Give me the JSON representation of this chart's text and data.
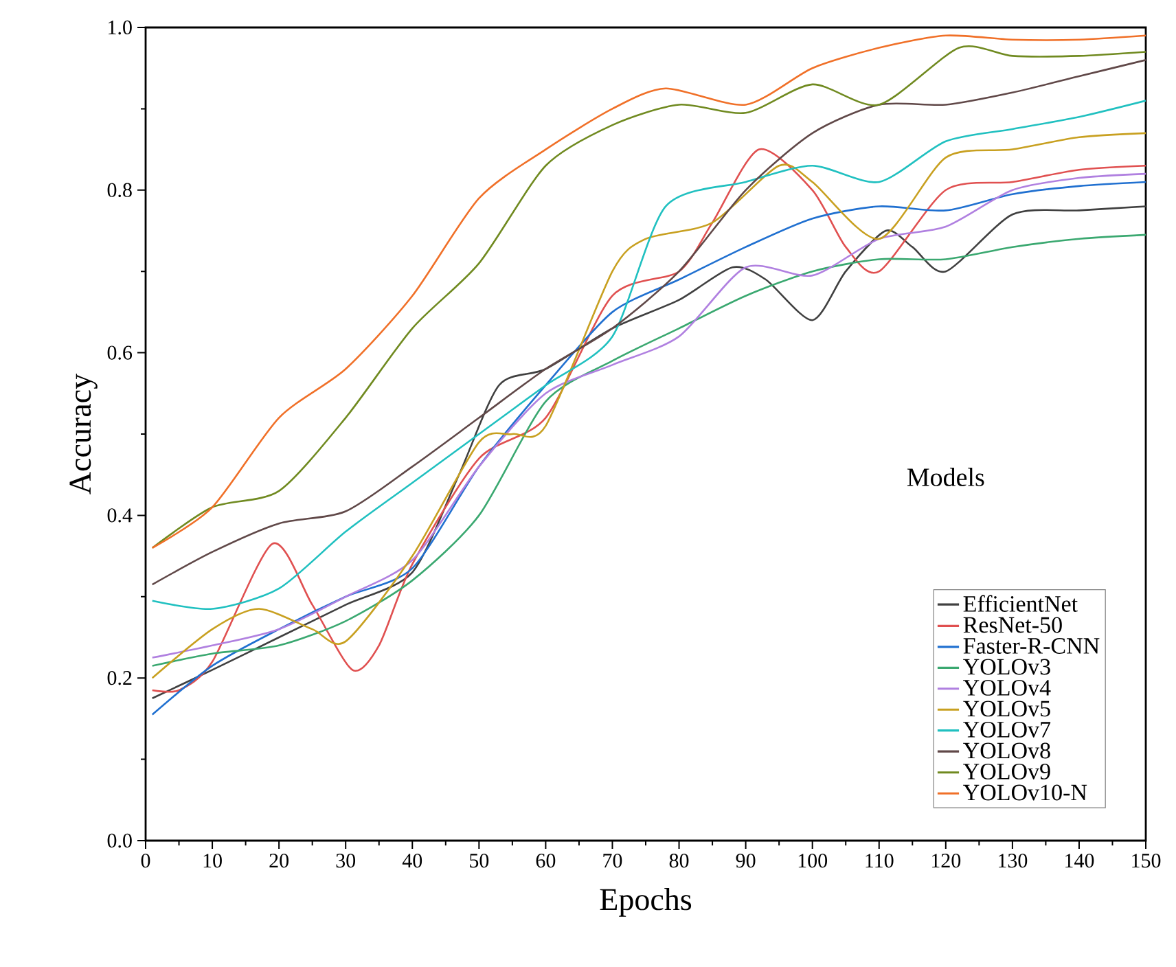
{
  "chart_data": {
    "type": "line",
    "xlabel": "Epochs",
    "ylabel": "Accuracy",
    "legend_title": "Models",
    "legend": "bottom right",
    "grid": false,
    "line_style": "solid",
    "marker": "none",
    "xlim": [
      0,
      150
    ],
    "ylim": [
      0,
      1.0
    ],
    "xticks": [
      0,
      10,
      20,
      30,
      40,
      50,
      60,
      70,
      80,
      90,
      100,
      110,
      120,
      130,
      140,
      150
    ],
    "yticks": [
      {
        "value": 0,
        "label": "0.0"
      },
      {
        "value": 0.2,
        "label": "0.2"
      },
      {
        "value": 0.4,
        "label": "0.4"
      },
      {
        "value": 0.6,
        "label": "0.6"
      },
      {
        "value": 0.8,
        "label": "0.8"
      },
      {
        "value": 1.0,
        "label": "1.0"
      }
    ],
    "series": [
      {
        "name": "EfficientNet",
        "color": "#404040",
        "x": [
          1,
          10,
          20,
          30,
          40,
          47,
          53,
          60,
          70,
          80,
          88,
          93,
          100,
          105,
          111,
          115,
          120,
          130,
          140,
          150
        ],
        "values": [
          0.175,
          0.21,
          0.25,
          0.29,
          0.33,
          0.45,
          0.56,
          0.58,
          0.63,
          0.665,
          0.705,
          0.69,
          0.64,
          0.7,
          0.75,
          0.73,
          0.7,
          0.77,
          0.775,
          0.78
        ]
      },
      {
        "name": "ResNet-50",
        "color": "#e05050",
        "x": [
          1,
          5,
          10,
          19,
          25,
          31,
          35,
          40,
          50,
          60,
          70,
          80,
          85,
          92,
          100,
          105,
          110,
          120,
          130,
          140,
          150
        ],
        "values": [
          0.185,
          0.185,
          0.22,
          0.365,
          0.29,
          0.21,
          0.24,
          0.34,
          0.47,
          0.52,
          0.67,
          0.7,
          0.76,
          0.85,
          0.8,
          0.73,
          0.7,
          0.8,
          0.81,
          0.825,
          0.83
        ]
      },
      {
        "name": "Faster-R-CNN",
        "color": "#2070d0",
        "x": [
          1,
          10,
          20,
          30,
          40,
          50,
          60,
          70,
          80,
          90,
          100,
          110,
          120,
          130,
          140,
          150
        ],
        "values": [
          0.155,
          0.215,
          0.26,
          0.3,
          0.335,
          0.46,
          0.56,
          0.65,
          0.69,
          0.73,
          0.765,
          0.78,
          0.775,
          0.795,
          0.805,
          0.81
        ]
      },
      {
        "name": "YOLOv3",
        "color": "#3aa870",
        "x": [
          1,
          10,
          20,
          30,
          40,
          50,
          60,
          70,
          80,
          90,
          100,
          110,
          120,
          130,
          140,
          150
        ],
        "values": [
          0.215,
          0.23,
          0.24,
          0.27,
          0.32,
          0.4,
          0.54,
          0.59,
          0.63,
          0.67,
          0.7,
          0.715,
          0.715,
          0.73,
          0.74,
          0.745
        ]
      },
      {
        "name": "YOLOv4",
        "color": "#b080e0",
        "x": [
          1,
          10,
          20,
          30,
          40,
          50,
          60,
          70,
          80,
          90,
          100,
          110,
          120,
          130,
          140,
          150
        ],
        "values": [
          0.225,
          0.24,
          0.26,
          0.3,
          0.345,
          0.46,
          0.55,
          0.585,
          0.62,
          0.705,
          0.695,
          0.74,
          0.755,
          0.8,
          0.815,
          0.82
        ]
      },
      {
        "name": "YOLOv5",
        "color": "#c8a020",
        "x": [
          1,
          10,
          17,
          25,
          30,
          40,
          50,
          55,
          60,
          70,
          75,
          85,
          95,
          100,
          110,
          120,
          130,
          140,
          150
        ],
        "values": [
          0.2,
          0.26,
          0.285,
          0.26,
          0.245,
          0.35,
          0.49,
          0.5,
          0.51,
          0.7,
          0.74,
          0.76,
          0.83,
          0.81,
          0.74,
          0.84,
          0.85,
          0.865,
          0.87
        ]
      },
      {
        "name": "YOLOv7",
        "color": "#20c0c0",
        "x": [
          1,
          10,
          20,
          30,
          40,
          50,
          60,
          70,
          78,
          90,
          100,
          110,
          120,
          130,
          140,
          150
        ],
        "values": [
          0.295,
          0.285,
          0.31,
          0.38,
          0.44,
          0.5,
          0.56,
          0.62,
          0.78,
          0.81,
          0.83,
          0.81,
          0.86,
          0.875,
          0.89,
          0.91
        ]
      },
      {
        "name": "YOLOv8",
        "color": "#604848",
        "x": [
          1,
          10,
          20,
          30,
          40,
          50,
          60,
          70,
          80,
          90,
          100,
          110,
          120,
          130,
          140,
          150
        ],
        "values": [
          0.315,
          0.355,
          0.39,
          0.405,
          0.46,
          0.52,
          0.58,
          0.63,
          0.7,
          0.8,
          0.87,
          0.905,
          0.905,
          0.92,
          0.94,
          0.96
        ]
      },
      {
        "name": "YOLOv9",
        "color": "#708a20",
        "x": [
          1,
          10,
          20,
          30,
          40,
          50,
          60,
          70,
          80,
          90,
          100,
          110,
          122,
          130,
          140,
          150
        ],
        "values": [
          0.36,
          0.41,
          0.43,
          0.52,
          0.63,
          0.71,
          0.83,
          0.88,
          0.905,
          0.895,
          0.93,
          0.905,
          0.975,
          0.965,
          0.965,
          0.97
        ]
      },
      {
        "name": "YOLOv10-N",
        "color": "#f07028",
        "x": [
          1,
          10,
          20,
          30,
          40,
          50,
          60,
          70,
          78,
          90,
          100,
          110,
          120,
          130,
          140,
          150
        ],
        "values": [
          0.36,
          0.41,
          0.52,
          0.58,
          0.67,
          0.79,
          0.85,
          0.9,
          0.925,
          0.905,
          0.95,
          0.975,
          0.99,
          0.985,
          0.985,
          0.99
        ]
      }
    ]
  }
}
